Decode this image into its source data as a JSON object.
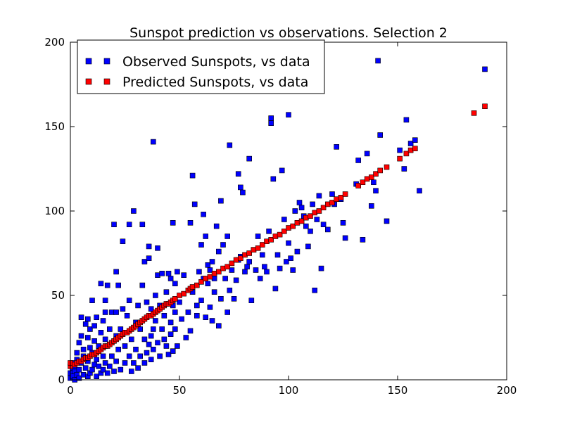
{
  "chart_data": {
    "type": "scatter",
    "title": "Sunspot prediction vs observations. Selection 2",
    "xlabel": "",
    "ylabel": "",
    "xlim": [
      0,
      200
    ],
    "ylim": [
      0,
      200
    ],
    "x_ticks": [
      0,
      50,
      100,
      150,
      200
    ],
    "y_ticks": [
      0,
      50,
      100,
      150,
      200
    ],
    "grid": false,
    "legend_position": "top-left",
    "series": [
      {
        "name": "Observed Sunspots, vs data",
        "color": "#0000ff",
        "marker": "square",
        "points": [
          [
            0,
            1
          ],
          [
            0,
            4
          ],
          [
            1,
            2
          ],
          [
            1,
            7
          ],
          [
            1,
            10
          ],
          [
            2,
            0
          ],
          [
            2,
            5
          ],
          [
            2,
            8
          ],
          [
            3,
            3
          ],
          [
            3,
            12
          ],
          [
            3,
            16
          ],
          [
            4,
            1
          ],
          [
            4,
            6
          ],
          [
            4,
            22
          ],
          [
            5,
            10
          ],
          [
            5,
            26
          ],
          [
            5,
            37
          ],
          [
            6,
            3
          ],
          [
            6,
            14
          ],
          [
            6,
            18
          ],
          [
            7,
            7
          ],
          [
            7,
            33
          ],
          [
            8,
            2
          ],
          [
            8,
            11
          ],
          [
            8,
            25
          ],
          [
            8,
            36
          ],
          [
            9,
            4
          ],
          [
            9,
            19
          ],
          [
            9,
            30
          ],
          [
            10,
            6
          ],
          [
            10,
            16
          ],
          [
            10,
            47
          ],
          [
            11,
            9
          ],
          [
            11,
            23
          ],
          [
            11,
            32
          ],
          [
            12,
            2
          ],
          [
            12,
            12
          ],
          [
            12,
            37
          ],
          [
            13,
            8
          ],
          [
            13,
            20
          ],
          [
            14,
            4
          ],
          [
            14,
            28
          ],
          [
            14,
            57
          ],
          [
            15,
            6
          ],
          [
            15,
            14
          ],
          [
            15,
            35
          ],
          [
            16,
            10
          ],
          [
            16,
            24
          ],
          [
            16,
            40
          ],
          [
            16,
            47
          ],
          [
            17,
            4
          ],
          [
            17,
            56
          ],
          [
            18,
            8
          ],
          [
            18,
            30
          ],
          [
            19,
            14
          ],
          [
            19,
            40
          ],
          [
            20,
            5
          ],
          [
            20,
            92
          ],
          [
            21,
            11
          ],
          [
            21,
            26
          ],
          [
            21,
            40
          ],
          [
            21,
            64
          ],
          [
            22,
            18
          ],
          [
            22,
            56
          ],
          [
            23,
            6
          ],
          [
            23,
            30
          ],
          [
            24,
            82
          ],
          [
            24,
            42
          ],
          [
            25,
            10
          ],
          [
            25,
            20
          ],
          [
            26,
            38
          ],
          [
            27,
            14
          ],
          [
            27,
            47
          ],
          [
            27,
            92
          ],
          [
            28,
            5
          ],
          [
            28,
            24
          ],
          [
            29,
            10
          ],
          [
            29,
            100
          ],
          [
            30,
            18
          ],
          [
            30,
            34
          ],
          [
            31,
            7
          ],
          [
            31,
            44
          ],
          [
            32,
            30
          ],
          [
            32,
            14
          ],
          [
            33,
            92
          ],
          [
            33,
            56
          ],
          [
            34,
            10
          ],
          [
            34,
            24
          ],
          [
            34,
            70
          ],
          [
            35,
            16
          ],
          [
            35,
            46
          ],
          [
            36,
            79
          ],
          [
            36,
            72
          ],
          [
            36,
            21
          ],
          [
            37,
            12
          ],
          [
            37,
            26
          ],
          [
            37,
            42
          ],
          [
            38,
            141
          ],
          [
            38,
            30
          ],
          [
            38,
            18
          ],
          [
            39,
            50
          ],
          [
            39,
            35
          ],
          [
            40,
            78
          ],
          [
            40,
            22
          ],
          [
            40,
            62
          ],
          [
            41,
            44
          ],
          [
            41,
            14
          ],
          [
            42,
            63
          ],
          [
            42,
            30
          ],
          [
            43,
            24
          ],
          [
            43,
            38
          ],
          [
            44,
            20
          ],
          [
            44,
            52
          ],
          [
            45,
            63
          ],
          [
            45,
            15
          ],
          [
            46,
            34
          ],
          [
            46,
            60
          ],
          [
            46,
            27
          ],
          [
            47,
            93
          ],
          [
            47,
            17
          ],
          [
            47,
            44
          ],
          [
            48,
            57
          ],
          [
            48,
            30
          ],
          [
            48,
            40
          ],
          [
            49,
            20
          ],
          [
            49,
            64
          ],
          [
            50,
            46
          ],
          [
            51,
            36
          ],
          [
            52,
            62
          ],
          [
            53,
            25
          ],
          [
            54,
            40
          ],
          [
            55,
            93
          ],
          [
            55,
            29
          ],
          [
            56,
            121
          ],
          [
            56,
            52
          ],
          [
            57,
            104
          ],
          [
            58,
            44
          ],
          [
            58,
            38
          ],
          [
            59,
            64
          ],
          [
            60,
            80
          ],
          [
            60,
            47
          ],
          [
            61,
            98
          ],
          [
            61,
            60
          ],
          [
            62,
            85
          ],
          [
            62,
            37
          ],
          [
            63,
            68
          ],
          [
            63,
            57
          ],
          [
            64,
            43
          ],
          [
            64,
            65
          ],
          [
            65,
            70
          ],
          [
            65,
            35
          ],
          [
            66,
            60
          ],
          [
            66,
            52
          ],
          [
            67,
            91
          ],
          [
            68,
            76
          ],
          [
            68,
            32
          ],
          [
            69,
            106
          ],
          [
            69,
            48
          ],
          [
            70,
            80
          ],
          [
            71,
            60
          ],
          [
            72,
            85
          ],
          [
            72,
            40
          ],
          [
            73,
            139
          ],
          [
            73,
            53
          ],
          [
            74,
            65
          ],
          [
            75,
            48
          ],
          [
            76,
            59
          ],
          [
            77,
            122
          ],
          [
            77,
            71
          ],
          [
            78,
            114
          ],
          [
            78,
            73
          ],
          [
            79,
            111
          ],
          [
            80,
            64
          ],
          [
            81,
            67
          ],
          [
            82,
            70
          ],
          [
            82,
            131
          ],
          [
            83,
            47
          ],
          [
            84,
            77
          ],
          [
            85,
            65
          ],
          [
            86,
            85
          ],
          [
            87,
            60
          ],
          [
            88,
            74
          ],
          [
            89,
            67
          ],
          [
            90,
            64
          ],
          [
            91,
            88
          ],
          [
            92,
            152
          ],
          [
            92,
            155
          ],
          [
            93,
            119
          ],
          [
            94,
            54
          ],
          [
            95,
            74
          ],
          [
            96,
            66
          ],
          [
            97,
            124
          ],
          [
            98,
            95
          ],
          [
            99,
            70
          ],
          [
            100,
            157
          ],
          [
            100,
            81
          ],
          [
            101,
            72
          ],
          [
            102,
            65
          ],
          [
            103,
            100
          ],
          [
            104,
            76
          ],
          [
            105,
            105
          ],
          [
            106,
            102
          ],
          [
            107,
            97
          ],
          [
            108,
            91
          ],
          [
            109,
            79
          ],
          [
            110,
            88
          ],
          [
            111,
            104
          ],
          [
            112,
            53
          ],
          [
            113,
            95
          ],
          [
            114,
            109
          ],
          [
            115,
            66
          ],
          [
            116,
            92
          ],
          [
            118,
            89
          ],
          [
            120,
            110
          ],
          [
            121,
            104
          ],
          [
            122,
            138
          ],
          [
            124,
            107
          ],
          [
            125,
            93
          ],
          [
            126,
            84
          ],
          [
            131,
            116
          ],
          [
            132,
            130
          ],
          [
            134,
            83
          ],
          [
            136,
            134
          ],
          [
            138,
            103
          ],
          [
            139,
            117
          ],
          [
            140,
            112
          ],
          [
            141,
            189
          ],
          [
            142,
            145
          ],
          [
            145,
            94
          ],
          [
            151,
            136
          ],
          [
            153,
            125
          ],
          [
            154,
            154
          ],
          [
            156,
            140
          ],
          [
            158,
            142
          ],
          [
            160,
            112
          ],
          [
            190,
            184
          ]
        ]
      },
      {
        "name": "Predicted Sunspots, vs data",
        "color": "#ff0000",
        "marker": "square",
        "points": [
          [
            0,
            8
          ],
          [
            0,
            10
          ],
          [
            2,
            9
          ],
          [
            3,
            10
          ],
          [
            4,
            11
          ],
          [
            5,
            11
          ],
          [
            6,
            12
          ],
          [
            7,
            13
          ],
          [
            8,
            13
          ],
          [
            9,
            14
          ],
          [
            10,
            15
          ],
          [
            11,
            15
          ],
          [
            12,
            16
          ],
          [
            13,
            17
          ],
          [
            14,
            18
          ],
          [
            15,
            19
          ],
          [
            16,
            20
          ],
          [
            17,
            20
          ],
          [
            18,
            21
          ],
          [
            19,
            22
          ],
          [
            20,
            23
          ],
          [
            21,
            24
          ],
          [
            22,
            25
          ],
          [
            23,
            26
          ],
          [
            24,
            27
          ],
          [
            25,
            28
          ],
          [
            26,
            28
          ],
          [
            27,
            29
          ],
          [
            28,
            30
          ],
          [
            29,
            31
          ],
          [
            30,
            32
          ],
          [
            31,
            33
          ],
          [
            32,
            34
          ],
          [
            33,
            35
          ],
          [
            34,
            36
          ],
          [
            35,
            37
          ],
          [
            36,
            38
          ],
          [
            37,
            38
          ],
          [
            38,
            39
          ],
          [
            39,
            40
          ],
          [
            40,
            41
          ],
          [
            41,
            42
          ],
          [
            42,
            43
          ],
          [
            43,
            44
          ],
          [
            44,
            45
          ],
          [
            45,
            45
          ],
          [
            46,
            46
          ],
          [
            47,
            47
          ],
          [
            48,
            48
          ],
          [
            50,
            50
          ],
          [
            52,
            51
          ],
          [
            54,
            53
          ],
          [
            55,
            54
          ],
          [
            56,
            55
          ],
          [
            58,
            56
          ],
          [
            60,
            58
          ],
          [
            62,
            60
          ],
          [
            64,
            61
          ],
          [
            66,
            63
          ],
          [
            68,
            64
          ],
          [
            70,
            66
          ],
          [
            72,
            67
          ],
          [
            74,
            69
          ],
          [
            76,
            71
          ],
          [
            78,
            72
          ],
          [
            80,
            74
          ],
          [
            82,
            75
          ],
          [
            84,
            77
          ],
          [
            86,
            78
          ],
          [
            88,
            80
          ],
          [
            90,
            82
          ],
          [
            92,
            83
          ],
          [
            94,
            85
          ],
          [
            96,
            86
          ],
          [
            98,
            88
          ],
          [
            100,
            90
          ],
          [
            102,
            91
          ],
          [
            104,
            93
          ],
          [
            106,
            94
          ],
          [
            108,
            96
          ],
          [
            110,
            97
          ],
          [
            112,
            99
          ],
          [
            114,
            100
          ],
          [
            116,
            102
          ],
          [
            118,
            104
          ],
          [
            120,
            105
          ],
          [
            122,
            107
          ],
          [
            124,
            108
          ],
          [
            126,
            110
          ],
          [
            132,
            115
          ],
          [
            134,
            117
          ],
          [
            136,
            119
          ],
          [
            138,
            120
          ],
          [
            140,
            122
          ],
          [
            142,
            124
          ],
          [
            145,
            126
          ],
          [
            151,
            131
          ],
          [
            154,
            134
          ],
          [
            156,
            136
          ],
          [
            158,
            137
          ],
          [
            185,
            158
          ],
          [
            190,
            162
          ]
        ]
      }
    ]
  }
}
